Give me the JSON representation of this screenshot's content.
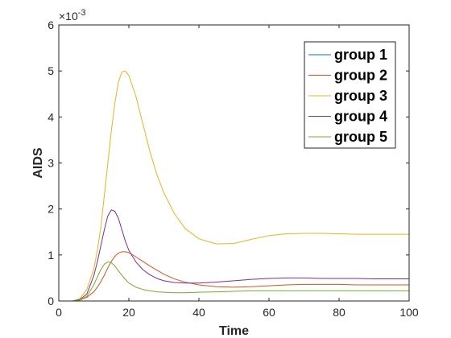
{
  "chart_data": {
    "type": "line",
    "xlabel": "Time",
    "ylabel": "AIDS",
    "y_exponent_label": "×10",
    "y_exponent_power": "-3",
    "xlim": [
      0,
      100
    ],
    "ylim": [
      0,
      6
    ],
    "xticks": [
      0,
      20,
      40,
      60,
      80,
      100
    ],
    "yticks": [
      0,
      1,
      2,
      3,
      4,
      5,
      6
    ],
    "grid": false,
    "legend_position": "top-right",
    "x": [
      0,
      2,
      4,
      6,
      8,
      10,
      11,
      12,
      13,
      14,
      15,
      16,
      17,
      18,
      19,
      20,
      22,
      24,
      26,
      28,
      30,
      33,
      36,
      40,
      45,
      50,
      55,
      60,
      65,
      70,
      75,
      80,
      85,
      90,
      95,
      100
    ],
    "series": [
      {
        "name": "group 1",
        "color": "#0072BD",
        "values": [
          0,
          0,
          0,
          0,
          0,
          0,
          0,
          0,
          0,
          0,
          0,
          0,
          0,
          0,
          0,
          0,
          0,
          0,
          0,
          0,
          0,
          0,
          0,
          0,
          0,
          0,
          0,
          0,
          0,
          0,
          0,
          0,
          0,
          0,
          0,
          0
        ]
      },
      {
        "name": "group 2",
        "color": "#D95319",
        "values": [
          0,
          0,
          0,
          0.02,
          0.08,
          0.2,
          0.3,
          0.42,
          0.56,
          0.72,
          0.86,
          0.97,
          1.04,
          1.07,
          1.07,
          1.05,
          0.96,
          0.86,
          0.76,
          0.67,
          0.58,
          0.48,
          0.41,
          0.35,
          0.31,
          0.3,
          0.31,
          0.33,
          0.35,
          0.36,
          0.36,
          0.36,
          0.35,
          0.35,
          0.35,
          0.35
        ]
      },
      {
        "name": "group 3",
        "color": "#EDB120",
        "values": [
          0,
          0,
          0,
          0.05,
          0.25,
          0.7,
          1.1,
          1.6,
          2.3,
          3.0,
          3.7,
          4.3,
          4.75,
          4.98,
          5.0,
          4.9,
          4.45,
          3.85,
          3.25,
          2.75,
          2.35,
          1.9,
          1.58,
          1.35,
          1.24,
          1.25,
          1.34,
          1.42,
          1.46,
          1.47,
          1.47,
          1.46,
          1.45,
          1.45,
          1.45,
          1.45
        ]
      },
      {
        "name": "group 4",
        "color": "#7E2F8E",
        "values": [
          0,
          0,
          0,
          0.03,
          0.15,
          0.55,
          0.85,
          1.2,
          1.55,
          1.85,
          1.98,
          1.95,
          1.8,
          1.55,
          1.3,
          1.1,
          0.85,
          0.68,
          0.57,
          0.49,
          0.44,
          0.4,
          0.39,
          0.39,
          0.41,
          0.44,
          0.47,
          0.49,
          0.5,
          0.5,
          0.49,
          0.49,
          0.49,
          0.48,
          0.48,
          0.48
        ]
      },
      {
        "name": "group 5",
        "color": "#77AC30",
        "values": [
          0,
          0,
          0,
          0.02,
          0.1,
          0.35,
          0.52,
          0.68,
          0.8,
          0.85,
          0.83,
          0.76,
          0.66,
          0.56,
          0.47,
          0.39,
          0.3,
          0.25,
          0.22,
          0.2,
          0.19,
          0.18,
          0.18,
          0.19,
          0.2,
          0.21,
          0.22,
          0.22,
          0.22,
          0.22,
          0.22,
          0.22,
          0.22,
          0.22,
          0.22,
          0.22
        ]
      }
    ]
  }
}
